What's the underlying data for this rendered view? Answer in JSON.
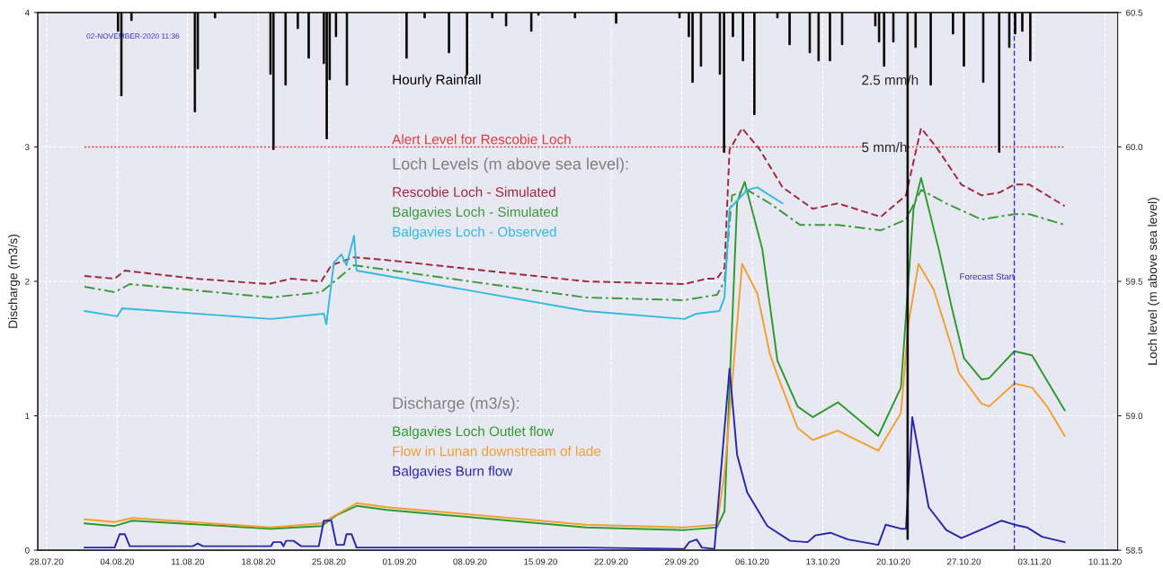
{
  "chart_data": {
    "type": "line",
    "xlabel": null,
    "ylabel": "Discharge (m3/s)",
    "y2label": "Loch level (m above sea level)",
    "annotations": [
      "02-NOVEMBER-2020 11:36",
      "Loch Levels (m above sea level):",
      "Discharge (m3/s):"
    ],
    "xlim": [
      "2020-07-27T03:00",
      "2020-11-11T06:00"
    ],
    "xticks": [
      {
        "value": "2020-07-28",
        "label": "28.07.20"
      },
      {
        "value": "2020-08-04",
        "label": "04.08.20"
      },
      {
        "value": "2020-08-11",
        "label": "11.08.20"
      },
      {
        "value": "2020-08-18",
        "label": "18.08.20"
      },
      {
        "value": "2020-08-25",
        "label": "25.08.20"
      },
      {
        "value": "2020-09-01",
        "label": "01.09.20"
      },
      {
        "value": "2020-09-08",
        "label": "08.09.20"
      },
      {
        "value": "2020-09-15",
        "label": "15.09.20"
      },
      {
        "value": "2020-09-22",
        "label": "22.09.20"
      },
      {
        "value": "2020-09-29",
        "label": "29.09.20"
      },
      {
        "value": "2020-10-06",
        "label": "06.10.20"
      },
      {
        "value": "2020-10-13",
        "label": "13.10.20"
      },
      {
        "value": "2020-10-20",
        "label": "20.10.20"
      },
      {
        "value": "2020-10-27",
        "label": "27.10.20"
      },
      {
        "value": "2020-11-03",
        "label": "03.11.20"
      },
      {
        "value": "2020-11-10",
        "label": "10.11.20"
      }
    ],
    "ylim": [
      0,
      4
    ],
    "yticks": [
      0,
      1,
      2,
      3,
      4
    ],
    "y2lim": [
      58.5,
      60.5
    ],
    "y2ticks": [
      58.5,
      {
        "value": 59,
        "label": "59.0"
      },
      59.5,
      {
        "value": 60,
        "label": "60.0"
      },
      60.5
    ],
    "y3lim": [
      20,
      0
    ],
    "y3ticks": [
      {
        "value": 2.5,
        "label": "2.5 mm/h"
      },
      {
        "value": 5,
        "label": "5 mm/h"
      }
    ],
    "grid": true,
    "ref_lines": [
      {
        "axis": "y2",
        "value": 60,
        "label": "Alert Level for Rescobie Loch",
        "color": "#e03c3c",
        "line_style": "dotted"
      },
      {
        "axis": "x",
        "value": "2020-11-01T00:00",
        "label": "Forecast Start",
        "color": "#3030cc",
        "line_style": "dashed"
      }
    ],
    "series": [
      {
        "name": "Hourly Rainfall",
        "type": "bar",
        "axis": "y3",
        "color": "#000000",
        "x": [
          "2020-08-04T02:00",
          "2020-08-04T10:00",
          "2020-08-05T10:00",
          "2020-08-11T14:00",
          "2020-08-11T17:00",
          "2020-08-12T00:00",
          "2020-08-13T17:00",
          "2020-08-19T05:00",
          "2020-08-19T12:00",
          "2020-08-20T14:00",
          "2020-08-20T17:00",
          "2020-08-21T22:00",
          "2020-08-23T00:00",
          "2020-08-24T12:00",
          "2020-08-24T19:00",
          "2020-08-25T02:00",
          "2020-08-25T17:00",
          "2020-08-26T17:00",
          "2020-08-26T19:00",
          "2020-09-01T17:00",
          "2020-09-03T12:00",
          "2020-09-05T22:00",
          "2020-09-07T17:00",
          "2020-09-10T05:00",
          "2020-09-11T14:00",
          "2020-09-14T02:00",
          "2020-09-14T19:00",
          "2020-09-18T10:00",
          "2020-09-22T12:00",
          "2020-09-28T19:00",
          "2020-09-29T17:00",
          "2020-09-30T02:00",
          "2020-09-30T22:00",
          "2020-10-02T19:00",
          "2020-10-03T05:00",
          "2020-10-04T02:00",
          "2020-10-05T02:00",
          "2020-10-06T05:00",
          "2020-10-08T12:00",
          "2020-10-09T17:00",
          "2020-10-11T17:00",
          "2020-10-12T14:00",
          "2020-10-13T17:00",
          "2020-10-14T22:00",
          "2020-10-18T05:00",
          "2020-10-18T14:00",
          "2020-10-19T02:00",
          "2020-10-20T00:00",
          "2020-10-21T10:00",
          "2020-10-22T05:00",
          "2020-10-23T17:00",
          "2020-10-25T22:00",
          "2020-10-27T00:00",
          "2020-10-28T22:00",
          "2020-10-30T12:00",
          "2020-10-31T12:00",
          "2020-11-01T02:00",
          "2020-11-01T19:00",
          "2020-11-02T14:00"
        ],
        "values": [
          0.7,
          3.1,
          0.3,
          null,
          3.7,
          2.1,
          0.2,
          2.3,
          5.1,
          null,
          2.7,
          0.6,
          1.7,
          1.9,
          4.7,
          2.5,
          0.9,
          null,
          2.7,
          1.7,
          0.2,
          1.5,
          2.3,
          0.2,
          0.5,
          0.7,
          0.1,
          0.2,
          0.4,
          0.2,
          0.9,
          2.6,
          2.0,
          2.3,
          5.2,
          0.9,
          1.8,
          3.8,
          0.2,
          1.2,
          1.5,
          1.8,
          1.8,
          1.2,
          0.5,
          1.1,
          2.0,
          1.1,
          19.6,
          1.3,
          2.7,
          0.8,
          2.0,
          2.6,
          5.2,
          1.3,
          0.8,
          0.7,
          1.8
        ]
      },
      {
        "name": "Rescobie Loch - Simulated",
        "axis": "y2",
        "color": "#a0283c",
        "line_style": "dashed",
        "x": [
          "2020-07-31T18:00",
          "2020-08-03T18:00",
          "2020-08-04T18:00",
          "2020-08-11T18:00",
          "2020-08-19T00:00",
          "2020-08-21T06:00",
          "2020-08-24T06:00",
          "2020-08-25T06:00",
          "2020-08-27T12:00",
          "2020-08-30T12:00",
          "2020-09-19T12:00",
          "2020-09-29T06:00",
          "2020-10-01T12:00",
          "2020-10-02T12:00",
          "2020-10-03T06:00",
          "2020-10-03T18:00",
          "2020-10-05T00:00",
          "2020-10-06T18:00",
          "2020-10-09T00:00",
          "2020-10-12T00:00",
          "2020-10-14T12:00",
          "2020-10-18T18:00",
          "2020-10-21T06:00",
          "2020-10-22T18:00",
          "2020-10-24T06:00",
          "2020-10-26T18:00",
          "2020-10-28T18:00",
          "2020-10-30T12:00",
          "2020-11-01T00:00",
          "2020-11-02T12:00",
          "2020-11-06T00:00"
        ],
        "values": [
          59.52,
          59.51,
          59.54,
          59.51,
          59.49,
          59.51,
          59.5,
          59.56,
          59.59,
          59.58,
          59.5,
          59.49,
          59.51,
          59.51,
          59.55,
          59.99,
          60.07,
          59.99,
          59.85,
          59.77,
          59.79,
          59.74,
          59.82,
          60.07,
          60.0,
          59.86,
          59.82,
          59.83,
          59.86,
          59.86,
          59.78
        ]
      },
      {
        "name": "Balgavies Loch - Simulated",
        "axis": "y2",
        "color": "#3c9a3c",
        "line_style": "dashdot",
        "x": [
          "2020-07-31T18:00",
          "2020-08-03T18:00",
          "2020-08-05T06:00",
          "2020-08-19T06:00",
          "2020-08-24T06:00",
          "2020-08-27T12:00",
          "2020-09-19T12:00",
          "2020-09-29T06:00",
          "2020-10-02T12:00",
          "2020-10-03T06:00",
          "2020-10-04T00:00",
          "2020-10-05T12:00",
          "2020-10-07T18:00",
          "2020-10-10T18:00",
          "2020-10-14T12:00",
          "2020-10-18T18:00",
          "2020-10-21T06:00",
          "2020-10-22T18:00",
          "2020-10-25T06:00",
          "2020-10-28T18:00",
          "2020-11-01T00:00",
          "2020-11-02T12:00",
          "2020-11-06T00:00"
        ],
        "values": [
          59.48,
          59.46,
          59.49,
          59.44,
          59.46,
          59.56,
          59.44,
          59.43,
          59.45,
          59.5,
          59.82,
          59.84,
          59.79,
          59.71,
          59.71,
          59.69,
          59.73,
          59.84,
          59.79,
          59.73,
          59.75,
          59.75,
          59.71
        ]
      },
      {
        "name": "Balgavies Loch - Observed",
        "axis": "y2",
        "color": "#33bbdd",
        "line_style": "solid",
        "x": [
          "2020-07-31T18:00",
          "2020-08-04T00:00",
          "2020-08-04T12:00",
          "2020-08-19T06:00",
          "2020-08-24T12:00",
          "2020-08-24T18:00",
          "2020-08-25T12:00",
          "2020-08-26T06:00",
          "2020-08-26T18:00",
          "2020-08-27T12:00",
          "2020-08-27T18:00",
          "2020-09-19T12:00",
          "2020-09-29T06:00",
          "2020-09-30T12:00",
          "2020-10-02T18:00",
          "2020-10-03T06:00",
          "2020-10-03T18:00",
          "2020-10-05T12:00",
          "2020-10-06T12:00",
          "2020-10-09T00:00"
        ],
        "values": [
          59.39,
          59.37,
          59.4,
          59.36,
          59.38,
          59.34,
          59.57,
          59.6,
          59.56,
          59.67,
          59.54,
          59.39,
          59.36,
          59.38,
          59.39,
          59.44,
          59.77,
          59.84,
          59.85,
          59.79
        ]
      },
      {
        "name": "Balgavies Loch Outlet flow",
        "axis": "y",
        "color": "#2e9a2e",
        "line_style": "solid",
        "x": [
          "2020-07-31T18:00",
          "2020-08-03T18:00",
          "2020-08-05T12:00",
          "2020-08-19T06:00",
          "2020-08-24T06:00",
          "2020-08-25T18:00",
          "2020-08-27T18:00",
          "2020-08-30T18:00",
          "2020-09-19T12:00",
          "2020-09-29T06:00",
          "2020-10-02T12:00",
          "2020-10-03T06:00",
          "2020-10-04T12:00",
          "2020-10-05T06:00",
          "2020-10-07T00:00",
          "2020-10-08T12:00",
          "2020-10-10T12:00",
          "2020-10-12T00:00",
          "2020-10-14T12:00",
          "2020-10-18T12:00",
          "2020-10-20T18:00",
          "2020-10-22T00:00",
          "2020-10-22T18:00",
          "2020-10-24T12:00",
          "2020-10-25T18:00",
          "2020-10-27T00:00",
          "2020-10-28T18:00",
          "2020-10-29T12:00",
          "2020-11-01T00:00",
          "2020-11-02T18:00",
          "2020-11-06T00:00"
        ],
        "values": [
          0.2,
          0.18,
          0.22,
          0.16,
          0.18,
          0.26,
          0.33,
          0.3,
          0.17,
          0.15,
          0.17,
          0.29,
          2.59,
          2.74,
          2.24,
          1.41,
          1.07,
          0.99,
          1.1,
          0.85,
          1.21,
          2.54,
          2.77,
          2.24,
          1.82,
          1.43,
          1.27,
          1.28,
          1.48,
          1.45,
          1.04
        ]
      },
      {
        "name": "Flow in Lunan downstream of lade",
        "axis": "y",
        "color": "#f0a030",
        "line_style": "solid",
        "x": [
          "2020-07-31T18:00",
          "2020-08-03T18:00",
          "2020-08-05T12:00",
          "2020-08-19T06:00",
          "2020-08-24T06:00",
          "2020-08-27T18:00",
          "2020-08-30T18:00",
          "2020-09-19T12:00",
          "2020-09-29T06:00",
          "2020-10-02T12:00",
          "2020-10-03T06:00",
          "2020-10-05T00:00",
          "2020-10-06T12:00",
          "2020-10-07T18:00",
          "2020-10-08T12:00",
          "2020-10-10T12:00",
          "2020-10-12T00:00",
          "2020-10-14T12:00",
          "2020-10-18T12:00",
          "2020-10-20T18:00",
          "2020-10-21T12:00",
          "2020-10-22T12:00",
          "2020-10-24T00:00",
          "2020-10-25T18:00",
          "2020-10-26T12:00",
          "2020-10-28T18:00",
          "2020-10-29T12:00",
          "2020-11-01T00:00",
          "2020-11-02T18:00",
          "2020-11-04T06:00",
          "2020-11-06T00:00"
        ],
        "values": [
          0.23,
          0.21,
          0.24,
          0.17,
          0.2,
          0.35,
          0.32,
          0.19,
          0.17,
          0.19,
          0.57,
          2.13,
          1.91,
          1.46,
          1.3,
          0.91,
          0.82,
          0.89,
          0.74,
          1.02,
          1.69,
          2.13,
          1.94,
          1.52,
          1.32,
          1.09,
          1.07,
          1.24,
          1.21,
          1.07,
          0.85
        ]
      },
      {
        "name": "Balgavies Burn flow",
        "axis": "y",
        "color": "#2828a8",
        "line_style": "solid",
        "x": [
          "2020-07-31T18:00",
          "2020-08-03T18:00",
          "2020-08-04T06:00",
          "2020-08-04T18:00",
          "2020-08-05T06:00",
          "2020-08-11T12:00",
          "2020-08-12T00:00",
          "2020-08-12T12:00",
          "2020-08-19T06:00",
          "2020-08-19T12:00",
          "2020-08-20T06:00",
          "2020-08-20T12:00",
          "2020-08-20T18:00",
          "2020-08-21T12:00",
          "2020-08-22T06:00",
          "2020-08-24T00:00",
          "2020-08-24T12:00",
          "2020-08-25T06:00",
          "2020-08-25T18:00",
          "2020-08-26T12:00",
          "2020-08-26T18:00",
          "2020-08-27T06:00",
          "2020-08-27T18:00",
          "2020-09-19T12:00",
          "2020-09-29T06:00",
          "2020-09-29T18:00",
          "2020-09-30T12:00",
          "2020-10-01T00:00",
          "2020-10-02T06:00",
          "2020-10-03T18:00",
          "2020-10-04T12:00",
          "2020-10-05T12:00",
          "2020-10-07T12:00",
          "2020-10-09T18:00",
          "2020-10-11T12:00",
          "2020-10-12T06:00",
          "2020-10-13T18:00",
          "2020-10-15T12:00",
          "2020-10-18T12:00",
          "2020-10-19T06:00",
          "2020-10-20T18:00",
          "2020-10-21T06:00",
          "2020-10-21T21:00",
          "2020-10-23T12:00",
          "2020-10-25T06:00",
          "2020-10-26T18:00",
          "2020-10-28T00:00",
          "2020-10-29T06:00",
          "2020-10-30T18:00",
          "2020-11-01T00:00",
          "2020-11-02T06:00",
          "2020-11-03T18:00",
          "2020-11-06T00:00"
        ],
        "values": [
          0.02,
          0.02,
          0.12,
          0.12,
          0.03,
          0.03,
          0.05,
          0.03,
          0.03,
          0.06,
          0.06,
          0.03,
          0.07,
          0.07,
          0.03,
          0.03,
          0.22,
          0.22,
          0.04,
          0.04,
          0.12,
          0.12,
          0.02,
          0.02,
          0.01,
          0.06,
          0.08,
          0.02,
          0.01,
          1.35,
          0.71,
          0.43,
          0.18,
          0.07,
          0.06,
          0.11,
          0.13,
          0.08,
          0.04,
          0.19,
          0.16,
          0.16,
          0.99,
          0.32,
          0.15,
          0.09,
          0.13,
          0.17,
          0.22,
          0.19,
          0.17,
          0.1,
          0.06
        ]
      }
    ]
  }
}
